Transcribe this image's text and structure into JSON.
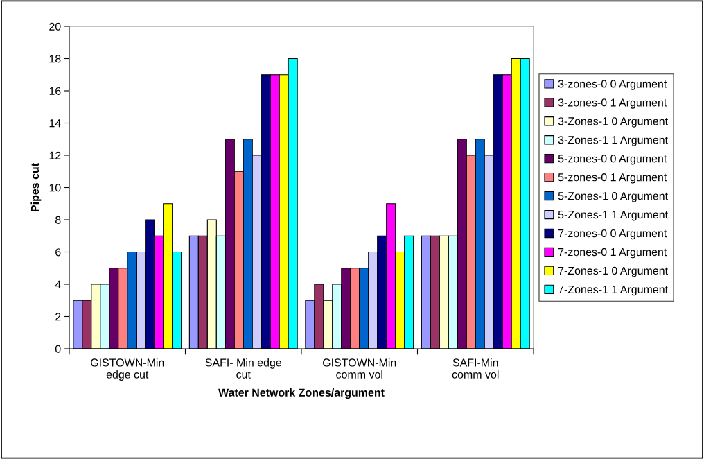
{
  "chart_data": {
    "type": "bar",
    "xlabel": "Water Network Zones/argument",
    "ylabel": "Pipes cut",
    "categories": [
      "GISTOWN-Min\nedge cut",
      "SAFI- Min edge\ncut",
      "GISTOWN-Min\ncomm vol",
      "SAFI-Min\ncomm vol"
    ],
    "ylim": [
      0,
      20
    ],
    "yticks": [
      0,
      2,
      4,
      6,
      8,
      10,
      12,
      14,
      16,
      18,
      20
    ],
    "grid": false,
    "legend": "right",
    "series": [
      {
        "name": "3-zones-0 0 Argument",
        "color": "#9999ff",
        "values": [
          3,
          7,
          3,
          7
        ]
      },
      {
        "name": "3-zones-0 1 Argument",
        "color": "#993366",
        "values": [
          3,
          7,
          4,
          7
        ]
      },
      {
        "name": "3-Zones-1 0 Argument",
        "color": "#ffffcc",
        "values": [
          4,
          8,
          3,
          7
        ]
      },
      {
        "name": "3-Zones-1 1 Argument",
        "color": "#ccffff",
        "values": [
          4,
          7,
          4,
          7
        ]
      },
      {
        "name": "5-zones-0 0 Argument",
        "color": "#660066",
        "values": [
          5,
          13,
          5,
          13
        ]
      },
      {
        "name": "5-zones-0 1 Argument",
        "color": "#ff8080",
        "values": [
          5,
          11,
          5,
          12
        ]
      },
      {
        "name": "5-Zones-1 0 Argument",
        "color": "#0066cc",
        "values": [
          6,
          13,
          5,
          13
        ]
      },
      {
        "name": "5-Zones-1 1 Argument",
        "color": "#ccccff",
        "values": [
          6,
          12,
          6,
          12
        ]
      },
      {
        "name": "7-zones-0 0 Argument",
        "color": "#000080",
        "values": [
          8,
          17,
          7,
          17
        ]
      },
      {
        "name": "7-zones-0 1 Argument",
        "color": "#ff00ff",
        "values": [
          7,
          17,
          9,
          17
        ]
      },
      {
        "name": "7-Zones-1 0 Argument",
        "color": "#ffff00",
        "values": [
          9,
          17,
          6,
          18
        ]
      },
      {
        "name": "7-Zones-1 1 Argument",
        "color": "#00ffff",
        "values": [
          6,
          18,
          7,
          18
        ]
      }
    ]
  }
}
